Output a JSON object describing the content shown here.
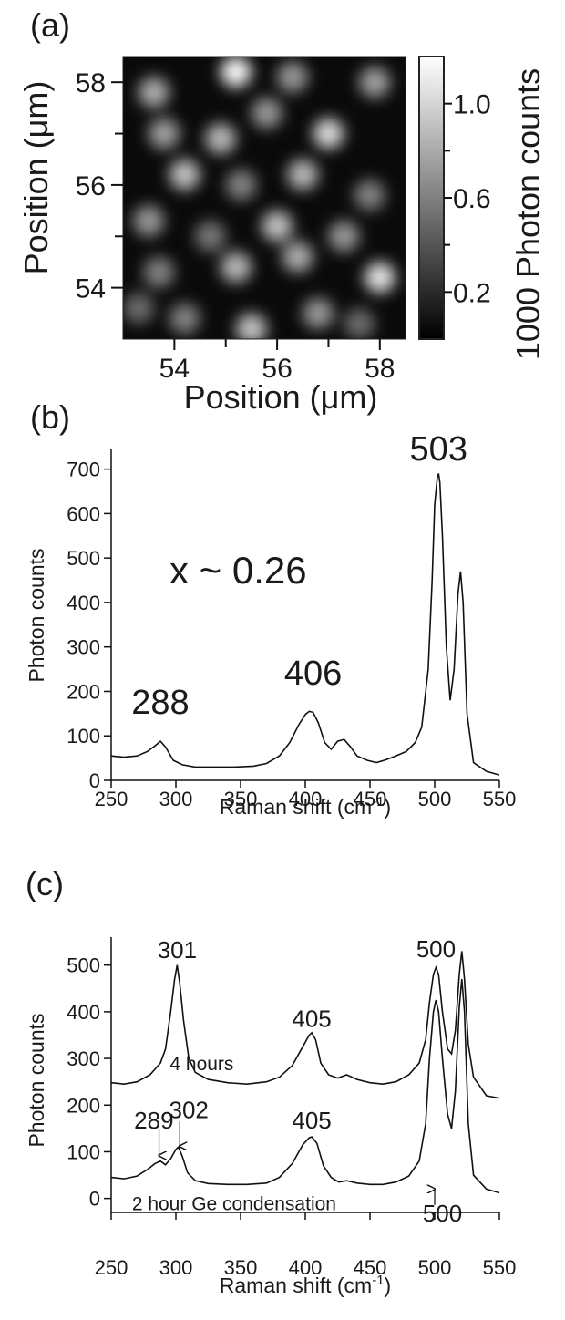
{
  "chart_data": [
    {
      "panel": "(a)",
      "type": "heatmap",
      "xlabel": "Position (μm)",
      "ylabel": "Position (μm)",
      "xlim": [
        53,
        58.5
      ],
      "ylim": [
        53,
        58.5
      ],
      "xticks": [
        "54",
        "56",
        "58"
      ],
      "yticks": [
        "54",
        "56",
        "58"
      ],
      "colorbar": {
        "label": "1000 Photon counts",
        "ticks": [
          "0.2",
          "0.6",
          "1.0"
        ],
        "range": [
          0,
          1.2
        ]
      },
      "spots": [
        {
          "x": 55.2,
          "y": 58.2,
          "v": 1.15
        },
        {
          "x": 53.6,
          "y": 57.8,
          "v": 0.8
        },
        {
          "x": 56.3,
          "y": 58.1,
          "v": 0.7
        },
        {
          "x": 57.9,
          "y": 58.0,
          "v": 0.75
        },
        {
          "x": 53.8,
          "y": 57.0,
          "v": 0.75
        },
        {
          "x": 54.9,
          "y": 56.9,
          "v": 0.85
        },
        {
          "x": 57.0,
          "y": 57.0,
          "v": 1.0
        },
        {
          "x": 55.8,
          "y": 57.4,
          "v": 0.7
        },
        {
          "x": 54.2,
          "y": 56.2,
          "v": 0.9
        },
        {
          "x": 55.3,
          "y": 56.0,
          "v": 0.6
        },
        {
          "x": 56.5,
          "y": 56.2,
          "v": 0.85
        },
        {
          "x": 57.8,
          "y": 55.8,
          "v": 0.6
        },
        {
          "x": 53.5,
          "y": 55.3,
          "v": 0.7
        },
        {
          "x": 54.7,
          "y": 55.0,
          "v": 0.55
        },
        {
          "x": 56.0,
          "y": 55.2,
          "v": 0.9
        },
        {
          "x": 57.3,
          "y": 55.0,
          "v": 0.7
        },
        {
          "x": 53.7,
          "y": 54.3,
          "v": 0.6
        },
        {
          "x": 55.2,
          "y": 54.4,
          "v": 0.85
        },
        {
          "x": 56.4,
          "y": 54.6,
          "v": 0.8
        },
        {
          "x": 58.0,
          "y": 54.2,
          "v": 1.05
        },
        {
          "x": 54.2,
          "y": 53.4,
          "v": 0.6
        },
        {
          "x": 55.5,
          "y": 53.2,
          "v": 0.9
        },
        {
          "x": 56.8,
          "y": 53.5,
          "v": 0.7
        },
        {
          "x": 57.6,
          "y": 53.3,
          "v": 0.5
        },
        {
          "x": 53.3,
          "y": 53.6,
          "v": 0.5
        }
      ]
    },
    {
      "panel": "(b)",
      "type": "line",
      "xlabel": "Raman shift (cm",
      "xlabel_sup": "-1",
      "xlabel_close": ")",
      "ylabel": "Photon counts",
      "xlim": [
        250,
        550
      ],
      "ylim": [
        0,
        730
      ],
      "xticks": [
        250,
        300,
        350,
        400,
        450,
        500,
        550
      ],
      "yticks": [
        0,
        100,
        200,
        300,
        400,
        500,
        600,
        700
      ],
      "annotation": "x ~ 0.26",
      "peak_labels": [
        {
          "text": "288",
          "x": 288,
          "y": 150
        },
        {
          "text": "406",
          "x": 406,
          "y": 215
        },
        {
          "text": "503",
          "x": 503,
          "y": 720
        }
      ],
      "series": [
        {
          "x": [
            250,
            260,
            270,
            278,
            284,
            288,
            292,
            298,
            305,
            315,
            330,
            345,
            360,
            370,
            380,
            388,
            395,
            400,
            403,
            406,
            410,
            415,
            420,
            425,
            430,
            435,
            440,
            448,
            455,
            462,
            470,
            478,
            485,
            490,
            495,
            498,
            500,
            502,
            503,
            504,
            506,
            509,
            512,
            515,
            518,
            520,
            522,
            525,
            530,
            540,
            550
          ],
          "y": [
            55,
            52,
            55,
            65,
            78,
            88,
            75,
            45,
            35,
            30,
            30,
            30,
            32,
            38,
            55,
            85,
            125,
            148,
            155,
            153,
            130,
            85,
            70,
            88,
            92,
            75,
            55,
            45,
            40,
            46,
            55,
            65,
            85,
            120,
            250,
            450,
            620,
            680,
            690,
            670,
            550,
            300,
            180,
            250,
            420,
            470,
            400,
            150,
            40,
            20,
            12
          ]
        }
      ]
    },
    {
      "panel": "(c)",
      "type": "line",
      "xlabel": "Raman shift (cm",
      "xlabel_sup": "-1",
      "xlabel_close": ")",
      "ylabel": "Photon counts",
      "xlim": [
        250,
        550
      ],
      "ylim": [
        -30,
        560
      ],
      "xticks": [
        250,
        300,
        350,
        400,
        450,
        500,
        550
      ],
      "yticks": [
        0,
        100,
        200,
        300,
        400,
        500
      ],
      "peak_labels": [
        {
          "text": "301",
          "x": 301,
          "y": 515
        },
        {
          "text": "405",
          "x": 405,
          "y": 368
        },
        {
          "text": "500",
          "x": 501,
          "y": 517
        },
        {
          "text": "289",
          "x": 283,
          "y": 150
        },
        {
          "text": "302",
          "x": 310,
          "y": 172
        },
        {
          "text": "405",
          "x": 405,
          "y": 150
        },
        {
          "text": "500",
          "x": 506,
          "y": -50
        }
      ],
      "arrows": [
        {
          "label": "289",
          "x": 287
        },
        {
          "label": "302",
          "x": 303
        },
        {
          "label": "500",
          "x": 500
        }
      ],
      "curve_labels": [
        {
          "text": "4 hours",
          "x": 320,
          "y": 275
        },
        {
          "text": "2 hour Ge condensation",
          "x": 345,
          "y": -25
        }
      ],
      "series": [
        {
          "name": "4 hours",
          "x": [
            250,
            260,
            270,
            280,
            288,
            292,
            296,
            299,
            301,
            303,
            306,
            310,
            315,
            325,
            340,
            355,
            370,
            380,
            390,
            398,
            403,
            405,
            408,
            412,
            418,
            425,
            432,
            440,
            450,
            460,
            470,
            480,
            488,
            493,
            496,
            499,
            501,
            503,
            506,
            510,
            513,
            516,
            519,
            521,
            523,
            526,
            530,
            540,
            550
          ],
          "y": [
            248,
            245,
            250,
            265,
            290,
            320,
            400,
            470,
            500,
            460,
            380,
            300,
            270,
            255,
            248,
            245,
            250,
            260,
            285,
            325,
            350,
            355,
            340,
            290,
            265,
            258,
            265,
            255,
            248,
            245,
            250,
            265,
            290,
            340,
            420,
            480,
            495,
            480,
            400,
            320,
            310,
            360,
            480,
            530,
            470,
            330,
            260,
            220,
            215
          ]
        },
        {
          "name": "2 hour Ge condensation",
          "x": [
            250,
            260,
            270,
            278,
            284,
            288,
            292,
            296,
            300,
            302,
            305,
            309,
            315,
            325,
            340,
            355,
            370,
            380,
            390,
            398,
            403,
            405,
            409,
            414,
            420,
            426,
            432,
            440,
            450,
            460,
            470,
            480,
            488,
            493,
            496,
            499,
            501,
            503,
            506,
            510,
            513,
            516,
            519,
            521,
            523,
            526,
            530,
            540,
            550
          ],
          "y": [
            45,
            42,
            48,
            62,
            75,
            80,
            72,
            85,
            105,
            110,
            90,
            55,
            38,
            32,
            30,
            30,
            33,
            45,
            75,
            115,
            130,
            132,
            118,
            70,
            45,
            35,
            38,
            33,
            30,
            30,
            35,
            48,
            80,
            160,
            300,
            400,
            425,
            400,
            300,
            180,
            150,
            230,
            410,
            470,
            400,
            160,
            50,
            20,
            12
          ]
        }
      ]
    }
  ]
}
